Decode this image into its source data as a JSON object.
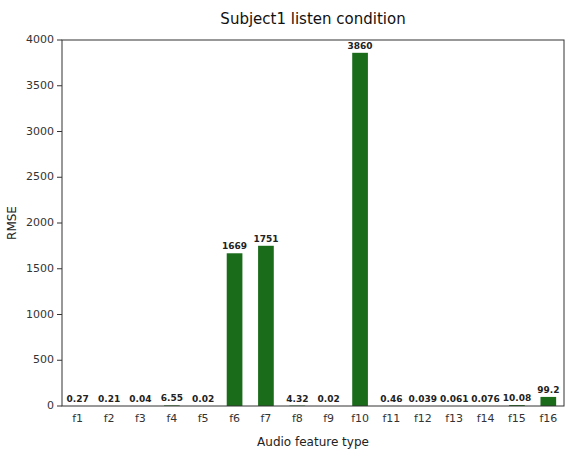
{
  "chart_data": {
    "type": "bar",
    "title": "Subject1 listen condition",
    "categories": [
      "f1",
      "f2",
      "f3",
      "f4",
      "f5",
      "f6",
      "f7",
      "f8",
      "f9",
      "f10",
      "f11",
      "f12",
      "f13",
      "f14",
      "f15",
      "f16"
    ],
    "values": [
      0.27,
      0.21,
      0.04,
      6.55,
      0.02,
      1669,
      1751,
      4.32,
      0.02,
      3860,
      0.46,
      0.039,
      0.061,
      0.076,
      10.08,
      99.2
    ],
    "color": "#1a6b1a",
    "x_label": "Audio feature type",
    "y_label": "RMSE",
    "ylim": [
      0,
      4000
    ],
    "yticks": [
      0,
      500,
      1000,
      1500,
      2000,
      2500,
      3000,
      3500,
      4000
    ],
    "data_labels": true,
    "grid": false
  }
}
